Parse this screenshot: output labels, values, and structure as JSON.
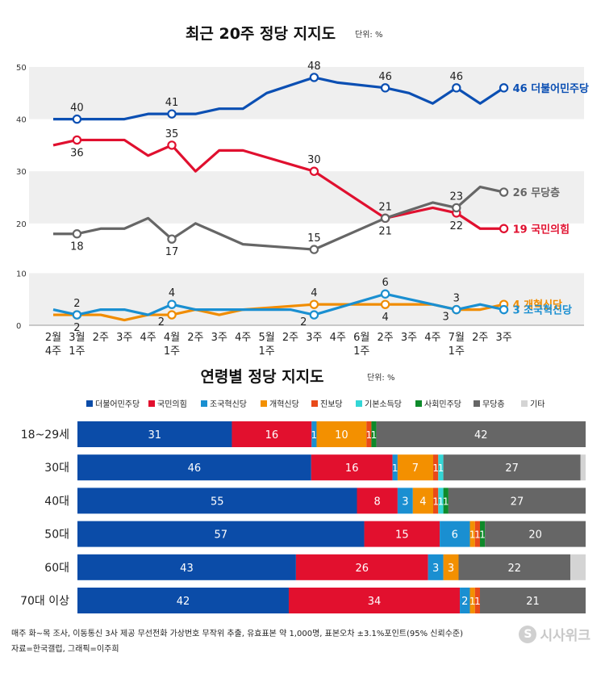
{
  "chart_data": [
    {
      "type": "line",
      "title": "최근 20주 정당 지지도",
      "unit_label": "단위: %",
      "y_ticks": [
        "0",
        "10",
        "20",
        "30",
        "40",
        "50"
      ],
      "x_tick_labels": [
        [
          "2월",
          "4주"
        ],
        [
          "3월",
          "1주"
        ],
        [
          "2주"
        ],
        [
          "3주"
        ],
        [
          "4주"
        ],
        [
          "4월",
          "1주"
        ],
        [
          "2주"
        ],
        [
          "3주"
        ],
        [
          "4주"
        ],
        [
          "5월",
          "1주"
        ],
        [
          "2주"
        ],
        [
          "3주"
        ],
        [
          "4주"
        ],
        [
          "6월",
          "1주"
        ],
        [
          "2주"
        ],
        [
          "3주"
        ],
        [
          "4주"
        ],
        [
          "7월",
          "1주"
        ],
        [
          "2주"
        ],
        [
          "3주"
        ]
      ],
      "series": [
        {
          "name": "더불어민주당",
          "color": "#0b4fb3",
          "values": [
            40,
            40,
            40,
            40,
            41,
            41,
            41,
            42,
            42,
            45,
            48,
            47,
            46,
            45,
            43,
            46,
            43,
            46
          ],
          "x_index": [
            0,
            1,
            2,
            3,
            4,
            5,
            6,
            7,
            8,
            9,
            11,
            12,
            14,
            15,
            16,
            17,
            18,
            19
          ],
          "labels": [
            {
              "i": 1,
              "text": "40",
              "pos": "above"
            },
            {
              "i": 5,
              "text": "41",
              "pos": "above"
            },
            {
              "i": 11,
              "text": "48",
              "pos": "above"
            },
            {
              "i": 14,
              "text": "46",
              "pos": "above"
            },
            {
              "i": 17,
              "text": "46",
              "pos": "above"
            }
          ],
          "markers": [
            1,
            5,
            11,
            14,
            17,
            19
          ],
          "end_label": "46 더불어민주당"
        },
        {
          "name": "국민의힘",
          "color": "#e0102f",
          "values": [
            35,
            36,
            36,
            36,
            33,
            35,
            30,
            34,
            34,
            30,
            21,
            23,
            22,
            19,
            19
          ],
          "x_index": [
            0,
            1,
            2,
            3,
            4,
            5,
            6,
            7,
            8,
            11,
            14,
            16,
            17,
            18,
            19
          ],
          "labels": [
            {
              "i": 1,
              "text": "36",
              "pos": "below"
            },
            {
              "i": 5,
              "text": "35",
              "pos": "above"
            },
            {
              "i": 11,
              "text": "30",
              "pos": "above"
            },
            {
              "i": 14,
              "text": "21",
              "pos": "below"
            },
            {
              "i": 17,
              "text": "22",
              "pos": "below"
            }
          ],
          "markers": [
            1,
            5,
            11,
            14,
            17,
            19
          ],
          "end_label": "19 국민의힘"
        },
        {
          "name": "무당층",
          "color": "#666666",
          "values": [
            18,
            18,
            19,
            19,
            21,
            17,
            20,
            16,
            15,
            21,
            24,
            23,
            27,
            26
          ],
          "x_index": [
            0,
            1,
            2,
            3,
            4,
            5,
            6,
            8,
            11,
            14,
            16,
            17,
            18,
            19
          ],
          "labels": [
            {
              "i": 1,
              "text": "18",
              "pos": "below"
            },
            {
              "i": 5,
              "text": "17",
              "pos": "below"
            },
            {
              "i": 11,
              "text": "15",
              "pos": "above"
            },
            {
              "i": 14,
              "text": "21",
              "pos": "above"
            },
            {
              "i": 17,
              "text": "23",
              "pos": "above"
            }
          ],
          "markers": [
            1,
            5,
            11,
            14,
            17,
            19
          ],
          "end_label": "26 무당층"
        },
        {
          "name": "개혁신당",
          "color": "#f08c00",
          "values": [
            2,
            2,
            2,
            1,
            2,
            2,
            3,
            2,
            3,
            4,
            4,
            4,
            4,
            3,
            3,
            4
          ],
          "x_index": [
            0,
            1,
            2,
            3,
            4,
            5,
            6,
            7,
            8,
            11,
            14,
            15,
            16,
            17,
            18,
            19
          ],
          "labels": [
            {
              "i": 1,
              "text": "2",
              "pos": "below"
            },
            {
              "i": 5,
              "text": "2",
              "pos": "left"
            },
            {
              "i": 11,
              "text": "4",
              "pos": "above"
            },
            {
              "i": 14,
              "text": "4",
              "pos": "below"
            },
            {
              "i": 17,
              "text": "3",
              "pos": "above"
            }
          ],
          "markers": [
            1,
            5,
            11,
            14,
            17,
            19
          ],
          "end_label": "4 개혁신당"
        },
        {
          "name": "조국혁신당",
          "color": "#1a8fd1",
          "values": [
            3,
            2,
            3,
            3,
            2,
            4,
            3,
            3,
            3,
            2,
            6,
            3,
            4,
            3
          ],
          "x_index": [
            0,
            1,
            2,
            3,
            4,
            5,
            6,
            8,
            10,
            11,
            14,
            17,
            18,
            19
          ],
          "labels": [
            {
              "i": 1,
              "text": "2",
              "pos": "above"
            },
            {
              "i": 5,
              "text": "4",
              "pos": "above"
            },
            {
              "i": 11,
              "text": "2",
              "pos": "left"
            },
            {
              "i": 14,
              "text": "6",
              "pos": "above"
            },
            {
              "i": 17,
              "text": "3",
              "pos": "left"
            }
          ],
          "markers": [
            1,
            5,
            11,
            14,
            17,
            19
          ],
          "end_label": "3 조국혁신당"
        }
      ]
    },
    {
      "type": "bar",
      "orientation": "horizontal-stacked",
      "title": "연령별 정당 지지도",
      "unit_label": "단위: %",
      "legend_position": "top",
      "categories": [
        "18~29세",
        "30대",
        "40대",
        "50대",
        "60대",
        "70대 이상"
      ],
      "series": [
        {
          "name": "더불어민주당",
          "color": "#0b4ca8",
          "values": [
            31,
            46,
            55,
            57,
            43,
            42
          ]
        },
        {
          "name": "국민의힘",
          "color": "#e2102e",
          "values": [
            16,
            16,
            8,
            15,
            26,
            34
          ]
        },
        {
          "name": "조국혁신당",
          "color": "#1a8fd1",
          "values": [
            1,
            1,
            3,
            6,
            3,
            2
          ]
        },
        {
          "name": "개혁신당",
          "color": "#f39000",
          "values": [
            10,
            7,
            4,
            1,
            3,
            1
          ]
        },
        {
          "name": "진보당",
          "color": "#e94a1a",
          "values": [
            1,
            1,
            1,
            1,
            0,
            1
          ]
        },
        {
          "name": "기본소득당",
          "color": "#33d6d6",
          "values": [
            0,
            1,
            1,
            0,
            0,
            0
          ]
        },
        {
          "name": "사회민주당",
          "color": "#0e8a2a",
          "values": [
            1,
            0,
            1,
            1,
            0,
            0
          ]
        },
        {
          "name": "무당층",
          "color": "#666666",
          "values": [
            42,
            27,
            27,
            20,
            22,
            21
          ]
        },
        {
          "name": "기타",
          "color": "#d4d4d4",
          "values": [
            0,
            1,
            0,
            0,
            3,
            0
          ]
        }
      ],
      "shown_labels": [
        [
          "31",
          "16",
          "1",
          "10",
          "1",
          "",
          "1",
          "42",
          ""
        ],
        [
          "46",
          "16",
          "1",
          "7",
          "1",
          "1",
          "",
          "27",
          ""
        ],
        [
          "55",
          "8",
          "3",
          "4",
          "1",
          "1",
          "1",
          "27",
          ""
        ],
        [
          "57",
          "15",
          "6",
          "1",
          "1",
          "",
          "1",
          "20",
          ""
        ],
        [
          "43",
          "26",
          "3",
          "3",
          "",
          "",
          "",
          "22",
          ""
        ],
        [
          "42",
          "34",
          "2",
          "1",
          "1",
          "",
          "",
          "21",
          ""
        ]
      ]
    }
  ],
  "footer": {
    "line1": "매주 화~목 조사, 이동통신 3사 제공 무선전화 가상번호 무작위 추출, 유효표본 약 1,000명, 표본오차 ±3.1%포인트(95% 신뢰수준)",
    "line2": "자료=한국갤럽, 그래픽=이주희"
  },
  "logo_text": "시사위크",
  "logo_mark": "S"
}
